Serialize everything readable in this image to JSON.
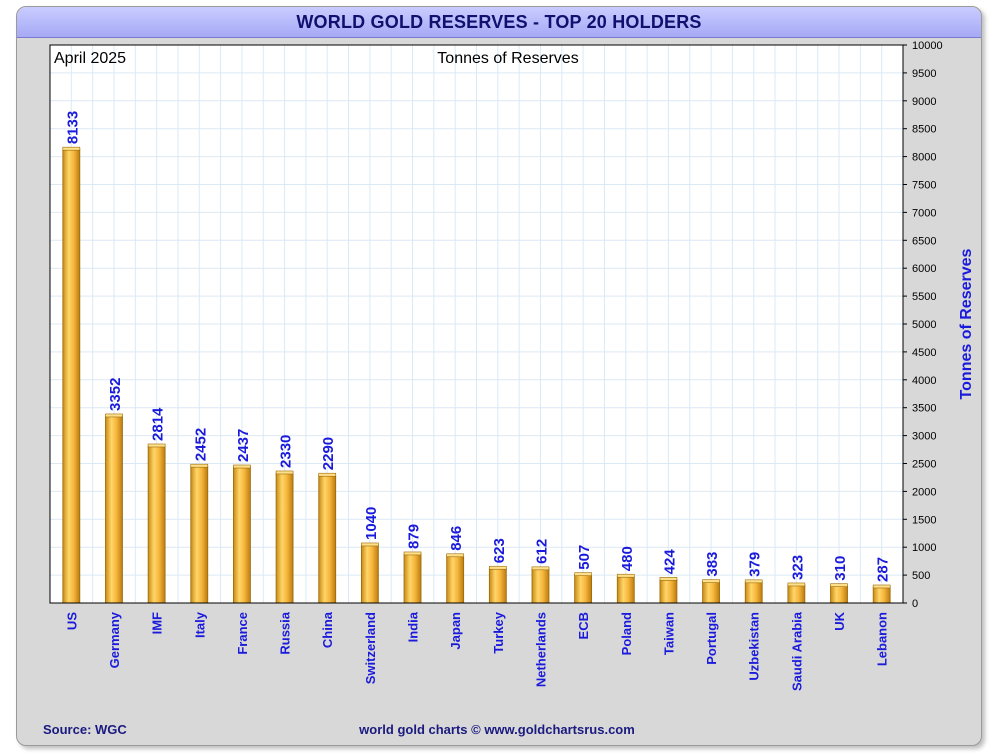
{
  "title": "WORLD GOLD RESERVES - TOP 20 HOLDERS",
  "date_label": "April 2025",
  "subtitle": "Tonnes of Reserves",
  "footer": {
    "source": "Source: WGC",
    "credit": "world gold charts © www.goldchartsrus.com"
  },
  "colors": {
    "bar": "#f0b030",
    "value_label": "#1a1adc",
    "category_label": "#1a1adc",
    "title_bg": "#b3b6fa",
    "grid": "#dbe9f5"
  },
  "chart_data": {
    "type": "bar",
    "title": "WORLD GOLD RESERVES - TOP 20 HOLDERS",
    "subtitle": "Tonnes of Reserves",
    "ylabel": "Tonnes of Reserves",
    "xlabel": "",
    "ylim": [
      0,
      10000
    ],
    "ytick_step": 500,
    "y_axis_side": "right",
    "grid": true,
    "categories": [
      "US",
      "Germany",
      "IMF",
      "Italy",
      "France",
      "Russia",
      "China",
      "Switzerland",
      "India",
      "Japan",
      "Turkey",
      "Netherlands",
      "ECB",
      "Poland",
      "Taiwan",
      "Portugal",
      "Uzbekistan",
      "Saudi Arabia",
      "UK",
      "Lebanon"
    ],
    "values": [
      8133,
      3352,
      2814,
      2452,
      2437,
      2330,
      2290,
      1040,
      879,
      846,
      623,
      612,
      507,
      480,
      424,
      383,
      379,
      323,
      310,
      287
    ]
  }
}
